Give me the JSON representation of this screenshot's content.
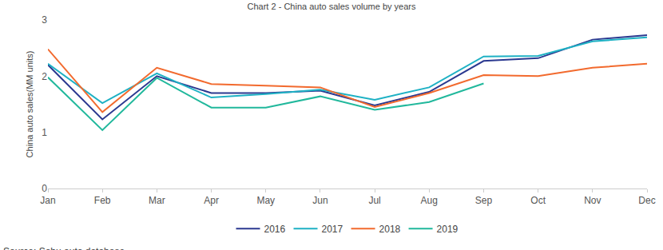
{
  "chart_data": {
    "type": "line",
    "title": "Chart 2 - China auto sales volume by years",
    "y_label": "China auto sales(MM units)",
    "source": "Source: Sohu auto database",
    "categories": [
      "Jan",
      "Feb",
      "Mar",
      "Apr",
      "May",
      "Jun",
      "Jul",
      "Aug",
      "Sep",
      "Oct",
      "Nov",
      "Dec"
    ],
    "series": [
      {
        "name": "2016",
        "color": "#2b3990",
        "values": [
          2.2,
          1.23,
          2.0,
          1.7,
          1.7,
          1.74,
          1.48,
          1.72,
          2.27,
          2.32,
          2.65,
          2.73
        ]
      },
      {
        "name": "2017",
        "color": "#1eb1c4",
        "values": [
          2.22,
          1.52,
          2.05,
          1.62,
          1.68,
          1.76,
          1.58,
          1.8,
          2.35,
          2.36,
          2.62,
          2.69
        ]
      },
      {
        "name": "2018",
        "color": "#f26a2e",
        "values": [
          2.48,
          1.36,
          2.15,
          1.86,
          1.83,
          1.8,
          1.45,
          1.7,
          2.02,
          2.0,
          2.15,
          2.22
        ]
      },
      {
        "name": "2019",
        "color": "#21b89c",
        "values": [
          1.98,
          1.04,
          1.97,
          1.44,
          1.44,
          1.64,
          1.4,
          1.54,
          1.87,
          null,
          null,
          null
        ]
      }
    ],
    "ylim": [
      0,
      3
    ],
    "yticks": [
      0,
      1,
      2,
      3
    ],
    "grid": false,
    "legend": "bottom"
  }
}
